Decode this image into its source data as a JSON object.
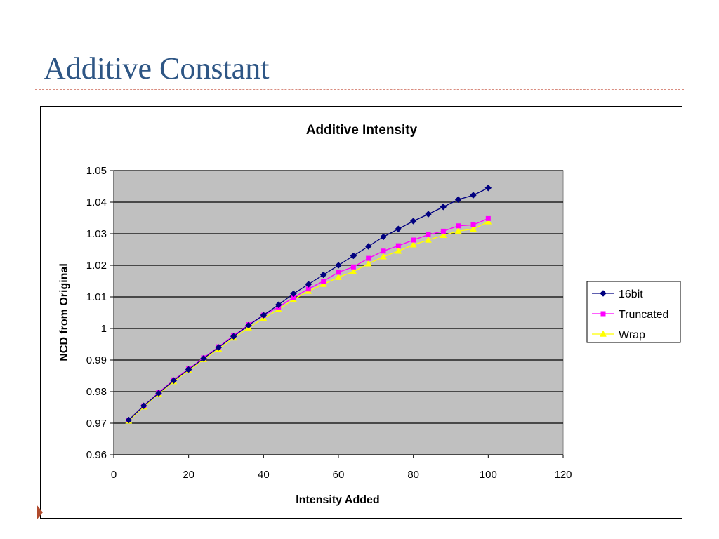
{
  "slide": {
    "title": "Additive Constant"
  },
  "chart_data": {
    "type": "line",
    "title": "Additive Intensity",
    "xlabel": "Intensity Added",
    "ylabel": "NCD from Original",
    "xlim": [
      0,
      120
    ],
    "ylim": [
      0.96,
      1.05
    ],
    "xticks": [
      0,
      20,
      40,
      60,
      80,
      100,
      120
    ],
    "yticks": [
      0.96,
      0.97,
      0.98,
      0.99,
      1,
      1.01,
      1.02,
      1.03,
      1.04,
      1.05
    ],
    "ytick_labels": [
      "0.96",
      "0.97",
      "0.98",
      "0.99",
      "1",
      "1.01",
      "1.02",
      "1.03",
      "1.04",
      "1.05"
    ],
    "grid": "horizontal",
    "plot_background": "#c0c0c0",
    "legend_position": "right",
    "x": [
      4,
      8,
      12,
      16,
      20,
      24,
      28,
      32,
      36,
      40,
      44,
      48,
      52,
      56,
      60,
      64,
      68,
      72,
      76,
      80,
      84,
      88,
      92,
      96,
      100
    ],
    "series": [
      {
        "name": "16bit",
        "color": "#000080",
        "marker": "diamond",
        "values": [
          0.971,
          0.9755,
          0.9795,
          0.9835,
          0.987,
          0.9905,
          0.994,
          0.9975,
          1.001,
          1.0042,
          1.0075,
          1.011,
          1.014,
          1.017,
          1.02,
          1.023,
          1.026,
          1.029,
          1.0315,
          1.034,
          1.0362,
          1.0385,
          1.0408,
          1.0422,
          1.0445
        ]
      },
      {
        "name": "Truncated",
        "color": "#ff00ff",
        "marker": "square",
        "values": [
          0.971,
          0.9755,
          0.9797,
          0.9837,
          0.9872,
          0.9907,
          0.9942,
          0.9977,
          1.0012,
          1.0042,
          1.0068,
          1.0098,
          1.0125,
          1.015,
          1.0178,
          1.0195,
          1.0222,
          1.0245,
          1.0262,
          1.028,
          1.0297,
          1.0308,
          1.0325,
          1.0328,
          1.0348
        ]
      },
      {
        "name": "Wrap",
        "color": "#ffff00",
        "marker": "triangle",
        "values": [
          0.9707,
          0.9752,
          0.9793,
          0.9832,
          0.9867,
          0.9902,
          0.9935,
          0.997,
          1.0002,
          1.0032,
          1.006,
          1.0092,
          1.0118,
          1.014,
          1.0162,
          1.018,
          1.0205,
          1.0227,
          1.0245,
          1.0265,
          1.028,
          1.0295,
          1.0308,
          1.0315,
          1.0338
        ]
      }
    ]
  }
}
